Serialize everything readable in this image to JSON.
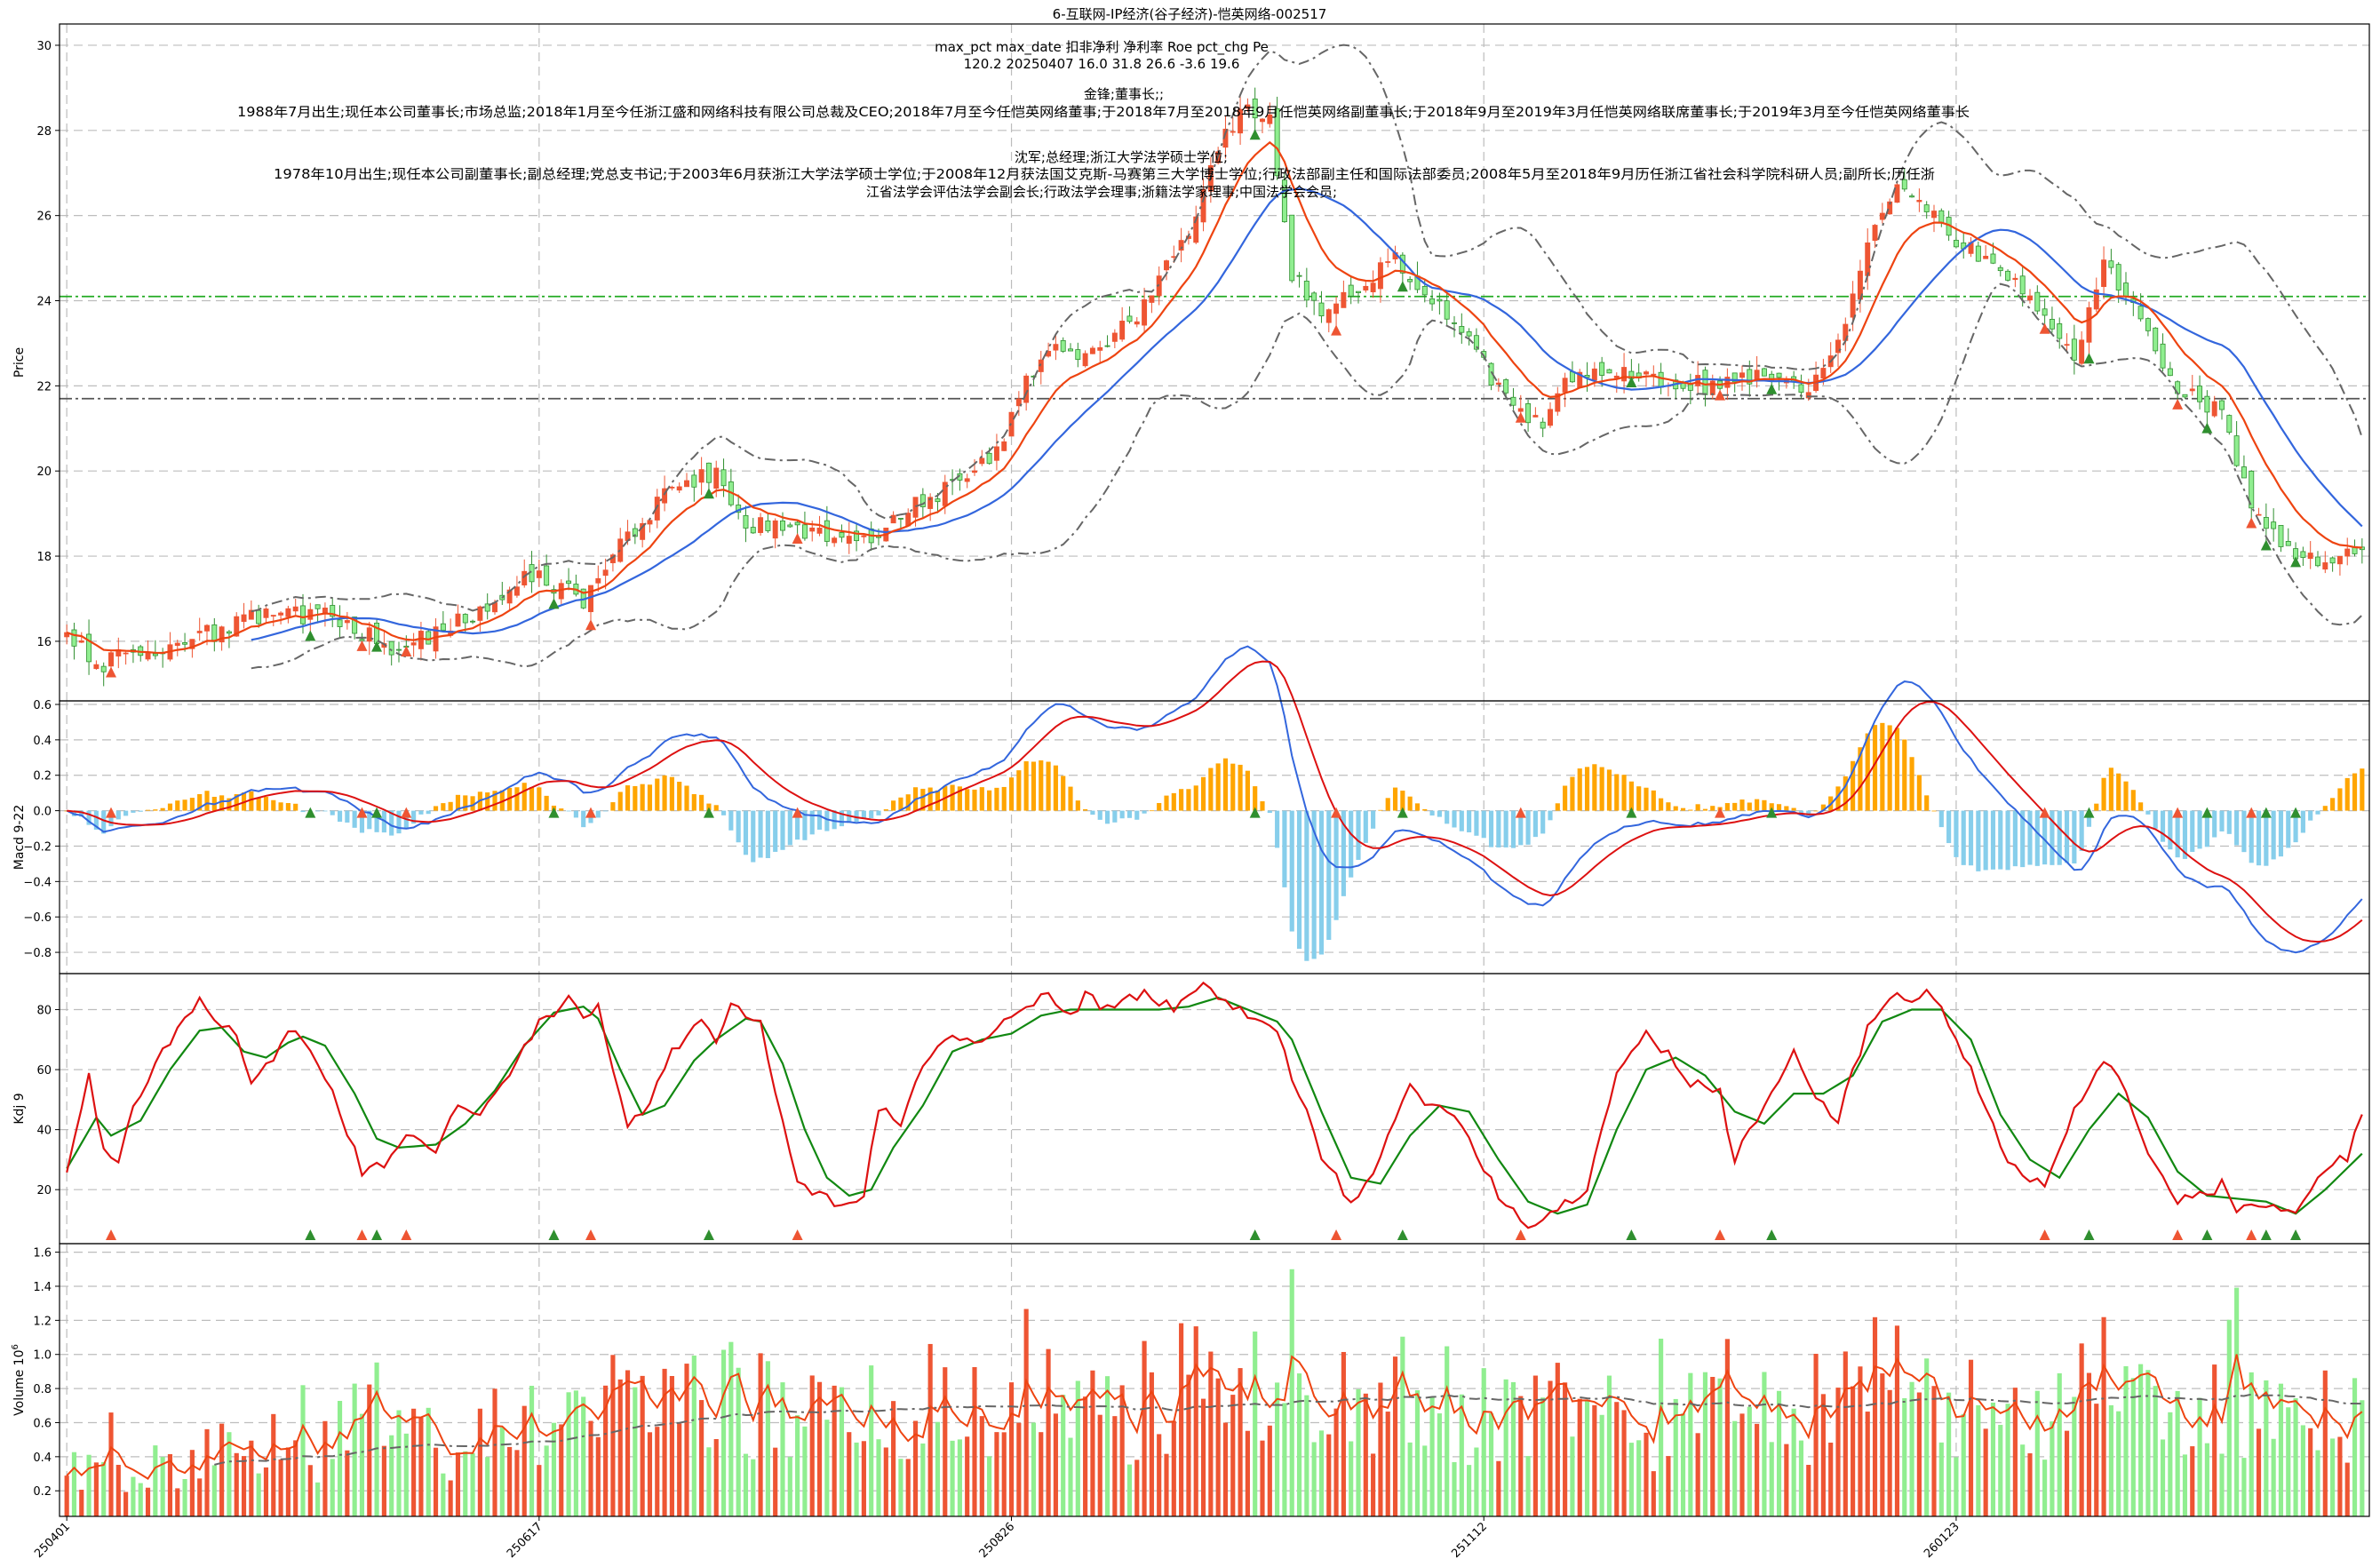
{
  "title": "6-互联网-IP经济(谷子经济)-恺英网络-002517",
  "info": {
    "header": "max_pct  max_date  扣非净利  净利率  Roe  pct_chg  Pe",
    "values": "120.2    20250407    16.0    31.8    26.6    -3.6    19.6",
    "person1_title": "金锋;董事长;;",
    "person1_bio": "1988年7月出生;现任本公司董事长;市场总监;2018年1月至今任浙江盛和网络科技有限公司总裁及CEO;2018年7月至今任恺英网络董事;于2018年7月至2018年9月任恺英网络副董事长;于2018年9月至2019年3月任恺英网络联席董事长;于2019年3月至今任恺英网络董事长",
    "person2_title": "沈军;总经理;浙江大学法学硕士学位;",
    "person2_bio1": "1978年10月出生;现任本公司副董事长;副总经理;党总支书记;于2003年6月获浙江大学法学硕士学位;于2008年12月获法国艾克斯-马赛第三大学博士学位;行政法部副主任和国际法部委员;2008年5月至2018年9月历任浙江省社会科学院科研人员;副所长;历任浙",
    "person2_bio2": "江省法学会评估法学会副会长;行政法学会理事;浙籍法学家理事;中国法学会会员;"
  },
  "colors": {
    "up": "#ee5533",
    "down": "#2f8f2f",
    "down_fill": "#90ee90",
    "ma_fast": "#ee4411",
    "ma_slow": "#3366dd",
    "band": "#666666",
    "macd_pos": "#ffa500",
    "macd_neg": "#87ceeb",
    "dif": "#3366dd",
    "dea": "#dd1111",
    "k": "#dd1111",
    "d": "#118811",
    "vol_up": "#ee5533",
    "vol_down": "#90ee90"
  },
  "chart_data": [
    {
      "panel": "price",
      "type": "candlestick",
      "ylabel": "Price",
      "ylim": [
        14.6,
        30.5
      ],
      "yticks": [
        16,
        18,
        20,
        22,
        24,
        26,
        28,
        30
      ],
      "x_ticks": [
        {
          "index": 0,
          "label": "250401"
        },
        {
          "index": 64,
          "label": "250617"
        },
        {
          "index": 128,
          "label": "250826"
        },
        {
          "index": 192,
          "label": "251112"
        },
        {
          "index": 256,
          "label": "260123"
        }
      ],
      "n_bars": 312,
      "close_anchors": [
        [
          0,
          16.1
        ],
        [
          5,
          15.5
        ],
        [
          10,
          15.8
        ],
        [
          20,
          16.2
        ],
        [
          26,
          16.6
        ],
        [
          35,
          16.6
        ],
        [
          45,
          15.8
        ],
        [
          55,
          16.6
        ],
        [
          62,
          17.6
        ],
        [
          70,
          17.0
        ],
        [
          76,
          18.5
        ],
        [
          82,
          19.6
        ],
        [
          88,
          20.0
        ],
        [
          92,
          18.7
        ],
        [
          98,
          18.7
        ],
        [
          108,
          18.3
        ],
        [
          114,
          19.2
        ],
        [
          122,
          19.7
        ],
        [
          126,
          20.5
        ],
        [
          132,
          22.8
        ],
        [
          138,
          22.7
        ],
        [
          145,
          23.6
        ],
        [
          152,
          25.6
        ],
        [
          157,
          28.0
        ],
        [
          160,
          28.6
        ],
        [
          163,
          28.2
        ],
        [
          166,
          24.6
        ],
        [
          170,
          23.8
        ],
        [
          176,
          24.5
        ],
        [
          180,
          25.0
        ],
        [
          184,
          24.2
        ],
        [
          190,
          23.0
        ],
        [
          196,
          21.4
        ],
        [
          200,
          21.0
        ],
        [
          204,
          22.3
        ],
        [
          214,
          22.2
        ],
        [
          222,
          22.0
        ],
        [
          230,
          22.3
        ],
        [
          236,
          22.0
        ],
        [
          240,
          23.0
        ],
        [
          244,
          25.2
        ],
        [
          248,
          26.8
        ],
        [
          252,
          26.3
        ],
        [
          256,
          25.4
        ],
        [
          262,
          24.8
        ],
        [
          268,
          23.6
        ],
        [
          272,
          22.6
        ],
        [
          276,
          25.0
        ],
        [
          282,
          23.2
        ],
        [
          286,
          22.0
        ],
        [
          292,
          21.4
        ],
        [
          296,
          19.2
        ],
        [
          302,
          17.8
        ],
        [
          306,
          17.9
        ],
        [
          311,
          18.3
        ]
      ],
      "series": [
        {
          "name": "",
          "desc": "short moving average",
          "color_key": "ma_fast"
        },
        {
          "name": "",
          "desc": "long moving average",
          "color_key": "ma_slow"
        },
        {
          "name": "",
          "desc": "bollinger upper/lower",
          "color_key": "band"
        }
      ],
      "hlines": [
        {
          "y": 24.1,
          "color": "#22aa22",
          "style": "dashdot"
        },
        {
          "y": 21.7,
          "color": "#555555",
          "style": "dashdot"
        }
      ],
      "signal_markers": [
        {
          "index": 6,
          "kind": "up"
        },
        {
          "index": 33,
          "kind": "down"
        },
        {
          "index": 40,
          "kind": "up"
        },
        {
          "index": 42,
          "kind": "down"
        },
        {
          "index": 46,
          "kind": "up"
        },
        {
          "index": 66,
          "kind": "down"
        },
        {
          "index": 71,
          "kind": "up"
        },
        {
          "index": 87,
          "kind": "down"
        },
        {
          "index": 99,
          "kind": "up"
        },
        {
          "index": 161,
          "kind": "down"
        },
        {
          "index": 172,
          "kind": "up"
        },
        {
          "index": 181,
          "kind": "down"
        },
        {
          "index": 197,
          "kind": "up"
        },
        {
          "index": 212,
          "kind": "down"
        },
        {
          "index": 224,
          "kind": "up"
        },
        {
          "index": 231,
          "kind": "down"
        },
        {
          "index": 268,
          "kind": "up"
        },
        {
          "index": 274,
          "kind": "down"
        },
        {
          "index": 286,
          "kind": "up"
        },
        {
          "index": 290,
          "kind": "down"
        },
        {
          "index": 296,
          "kind": "up"
        },
        {
          "index": 298,
          "kind": "down"
        },
        {
          "index": 302,
          "kind": "down"
        }
      ]
    },
    {
      "panel": "macd",
      "type": "bar+line",
      "ylabel": "Macd 9-22",
      "ylim": [
        -0.92,
        0.62
      ],
      "yticks": [
        -0.8,
        -0.6,
        -0.4,
        -0.2,
        0.0,
        0.2,
        0.4,
        0.6
      ],
      "ytick_labels": [
        "−0.8",
        "−0.6",
        "−0.4",
        "−0.2",
        "0.0",
        "0.2",
        "0.4",
        "0.6"
      ],
      "series": [
        {
          "name": "",
          "desc": "DIF line",
          "color_key": "dif"
        },
        {
          "name": "",
          "desc": "DEA line",
          "color_key": "dea"
        },
        {
          "name": "",
          "desc": "histogram",
          "color_key": "macd_pos"
        }
      ]
    },
    {
      "panel": "kdj",
      "type": "line",
      "ylabel": "Kdj 9",
      "ylim": [
        2,
        92
      ],
      "yticks": [
        20,
        40,
        60,
        80
      ],
      "k_anchors": [
        [
          0,
          27
        ],
        [
          3,
          57
        ],
        [
          5,
          35
        ],
        [
          7,
          30
        ],
        [
          9,
          48
        ],
        [
          14,
          70
        ],
        [
          18,
          83
        ],
        [
          21,
          76
        ],
        [
          23,
          72
        ],
        [
          25,
          57
        ],
        [
          28,
          62
        ],
        [
          30,
          72
        ],
        [
          32,
          70
        ],
        [
          35,
          58
        ],
        [
          38,
          40
        ],
        [
          40,
          26
        ],
        [
          43,
          28
        ],
        [
          46,
          38
        ],
        [
          50,
          34
        ],
        [
          53,
          47
        ],
        [
          56,
          44
        ],
        [
          60,
          58
        ],
        [
          64,
          75
        ],
        [
          68,
          84
        ],
        [
          70,
          78
        ],
        [
          72,
          82
        ],
        [
          74,
          60
        ],
        [
          76,
          40
        ],
        [
          79,
          48
        ],
        [
          82,
          66
        ],
        [
          86,
          75
        ],
        [
          88,
          70
        ],
        [
          90,
          82
        ],
        [
          94,
          75
        ],
        [
          96,
          52
        ],
        [
          99,
          22
        ],
        [
          102,
          18
        ],
        [
          106,
          14
        ],
        [
          108,
          16
        ],
        [
          110,
          48
        ],
        [
          113,
          42
        ],
        [
          116,
          60
        ],
        [
          120,
          72
        ],
        [
          124,
          70
        ],
        [
          126,
          74
        ],
        [
          130,
          80
        ],
        [
          132,
          86
        ],
        [
          136,
          78
        ],
        [
          138,
          84
        ],
        [
          142,
          80
        ],
        [
          146,
          86
        ],
        [
          150,
          80
        ],
        [
          154,
          88
        ],
        [
          158,
          80
        ],
        [
          162,
          76
        ],
        [
          164,
          72
        ],
        [
          166,
          58
        ],
        [
          170,
          32
        ],
        [
          174,
          16
        ],
        [
          178,
          30
        ],
        [
          182,
          55
        ],
        [
          184,
          48
        ],
        [
          186,
          50
        ],
        [
          190,
          38
        ],
        [
          194,
          18
        ],
        [
          198,
          8
        ],
        [
          202,
          14
        ],
        [
          206,
          20
        ],
        [
          210,
          60
        ],
        [
          214,
          72
        ],
        [
          218,
          62
        ],
        [
          220,
          56
        ],
        [
          224,
          52
        ],
        [
          226,
          30
        ],
        [
          230,
          48
        ],
        [
          234,
          65
        ],
        [
          238,
          48
        ],
        [
          240,
          44
        ],
        [
          244,
          74
        ],
        [
          248,
          86
        ],
        [
          250,
          82
        ],
        [
          252,
          86
        ],
        [
          254,
          80
        ],
        [
          258,
          60
        ],
        [
          262,
          35
        ],
        [
          264,
          27
        ],
        [
          268,
          20
        ],
        [
          272,
          46
        ],
        [
          276,
          62
        ],
        [
          278,
          58
        ],
        [
          282,
          32
        ],
        [
          286,
          16
        ],
        [
          290,
          18
        ],
        [
          292,
          22
        ],
        [
          294,
          12
        ],
        [
          296,
          16
        ],
        [
          298,
          15
        ],
        [
          302,
          14
        ],
        [
          306,
          28
        ],
        [
          309,
          30
        ],
        [
          311,
          45
        ]
      ],
      "d_anchors": [
        [
          0,
          27
        ],
        [
          4,
          44
        ],
        [
          6,
          38
        ],
        [
          10,
          43
        ],
        [
          14,
          60
        ],
        [
          18,
          73
        ],
        [
          21,
          74
        ],
        [
          24,
          66
        ],
        [
          27,
          64
        ],
        [
          30,
          69
        ],
        [
          32,
          71
        ],
        [
          35,
          68
        ],
        [
          39,
          52
        ],
        [
          42,
          37
        ],
        [
          45,
          34
        ],
        [
          50,
          35
        ],
        [
          54,
          42
        ],
        [
          58,
          53
        ],
        [
          62,
          68
        ],
        [
          66,
          79
        ],
        [
          70,
          81
        ],
        [
          72,
          77
        ],
        [
          75,
          60
        ],
        [
          78,
          45
        ],
        [
          81,
          48
        ],
        [
          85,
          63
        ],
        [
          88,
          70
        ],
        [
          92,
          77
        ],
        [
          94,
          76
        ],
        [
          97,
          62
        ],
        [
          100,
          40
        ],
        [
          103,
          24
        ],
        [
          106,
          18
        ],
        [
          109,
          20
        ],
        [
          112,
          34
        ],
        [
          116,
          48
        ],
        [
          120,
          66
        ],
        [
          124,
          70
        ],
        [
          128,
          72
        ],
        [
          132,
          78
        ],
        [
          136,
          80
        ],
        [
          140,
          80
        ],
        [
          144,
          80
        ],
        [
          148,
          80
        ],
        [
          152,
          81
        ],
        [
          156,
          84
        ],
        [
          160,
          80
        ],
        [
          164,
          76
        ],
        [
          166,
          70
        ],
        [
          170,
          46
        ],
        [
          174,
          24
        ],
        [
          178,
          22
        ],
        [
          182,
          38
        ],
        [
          186,
          48
        ],
        [
          190,
          46
        ],
        [
          194,
          30
        ],
        [
          198,
          16
        ],
        [
          202,
          12
        ],
        [
          206,
          15
        ],
        [
          210,
          40
        ],
        [
          214,
          60
        ],
        [
          218,
          64
        ],
        [
          222,
          58
        ],
        [
          226,
          46
        ],
        [
          230,
          42
        ],
        [
          234,
          52
        ],
        [
          238,
          52
        ],
        [
          242,
          58
        ],
        [
          246,
          76
        ],
        [
          250,
          80
        ],
        [
          254,
          80
        ],
        [
          258,
          70
        ],
        [
          262,
          45
        ],
        [
          266,
          30
        ],
        [
          270,
          24
        ],
        [
          274,
          40
        ],
        [
          278,
          52
        ],
        [
          282,
          44
        ],
        [
          286,
          26
        ],
        [
          290,
          18
        ],
        [
          294,
          17
        ],
        [
          298,
          16
        ],
        [
          302,
          12
        ],
        [
          306,
          20
        ],
        [
          311,
          32
        ]
      ],
      "signal_markers": [
        {
          "index": 6,
          "kind": "up"
        },
        {
          "index": 33,
          "kind": "down"
        },
        {
          "index": 40,
          "kind": "up"
        },
        {
          "index": 42,
          "kind": "down"
        },
        {
          "index": 46,
          "kind": "up"
        },
        {
          "index": 66,
          "kind": "down"
        },
        {
          "index": 71,
          "kind": "up"
        },
        {
          "index": 87,
          "kind": "down"
        },
        {
          "index": 99,
          "kind": "up"
        },
        {
          "index": 161,
          "kind": "down"
        },
        {
          "index": 172,
          "kind": "up"
        },
        {
          "index": 181,
          "kind": "down"
        },
        {
          "index": 197,
          "kind": "up"
        },
        {
          "index": 212,
          "kind": "down"
        },
        {
          "index": 224,
          "kind": "up"
        },
        {
          "index": 231,
          "kind": "down"
        },
        {
          "index": 268,
          "kind": "up"
        },
        {
          "index": 274,
          "kind": "down"
        },
        {
          "index": 286,
          "kind": "up"
        },
        {
          "index": 290,
          "kind": "down"
        },
        {
          "index": 296,
          "kind": "up"
        },
        {
          "index": 298,
          "kind": "down"
        },
        {
          "index": 302,
          "kind": "down"
        }
      ]
    },
    {
      "panel": "volume",
      "type": "bar+line",
      "ylabel": "Volume",
      "ylabel_exp": "6",
      "ylim": [
        0.05,
        1.65
      ],
      "yticks": [
        0.2,
        0.4,
        0.6,
        0.8,
        1.0,
        1.2,
        1.4,
        1.6
      ],
      "series": [
        {
          "name": "",
          "desc": "volume bars",
          "color_key": "vol_up"
        },
        {
          "name": "",
          "desc": "short volume average",
          "color_key": "ma_fast"
        },
        {
          "name": "",
          "desc": "long volume average",
          "color_key": "band"
        }
      ]
    }
  ]
}
